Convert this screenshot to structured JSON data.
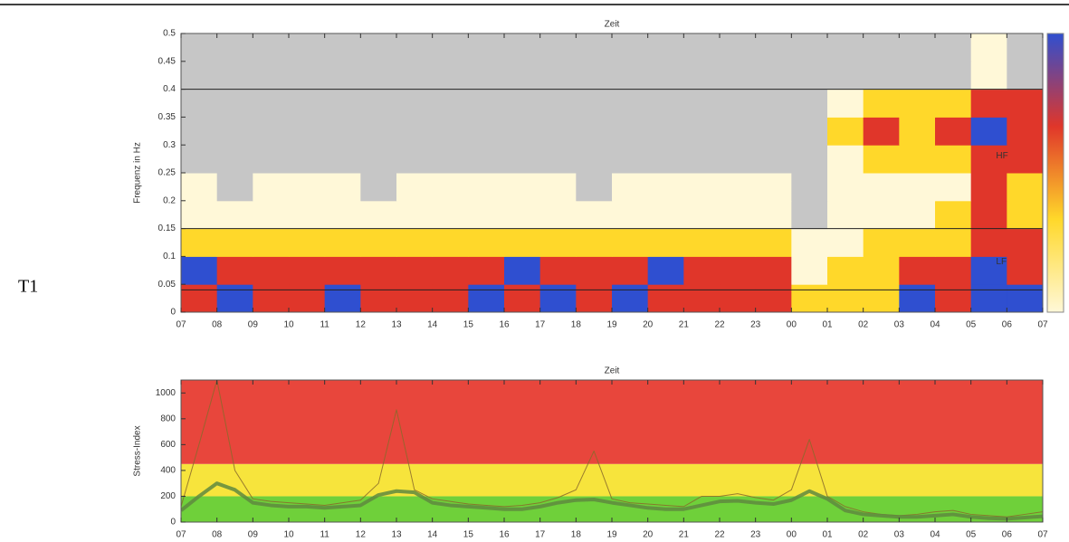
{
  "label": "T1",
  "chart_data": [
    {
      "type": "heatmap",
      "xlabel": "Zeit",
      "ylabel": "Frequenz in Hz",
      "xlim": [
        0,
        24
      ],
      "ylim": [
        0,
        0.5
      ],
      "xticks": [
        {
          "value": 0,
          "label": "07"
        },
        {
          "value": 1,
          "label": "08"
        },
        {
          "value": 2,
          "label": "09"
        },
        {
          "value": 3,
          "label": "10"
        },
        {
          "value": 4,
          "label": "11"
        },
        {
          "value": 5,
          "label": "12"
        },
        {
          "value": 6,
          "label": "13"
        },
        {
          "value": 7,
          "label": "14"
        },
        {
          "value": 8,
          "label": "15"
        },
        {
          "value": 9,
          "label": "16"
        },
        {
          "value": 10,
          "label": "17"
        },
        {
          "value": 11,
          "label": "18"
        },
        {
          "value": 12,
          "label": "19"
        },
        {
          "value": 13,
          "label": "20"
        },
        {
          "value": 14,
          "label": "21"
        },
        {
          "value": 15,
          "label": "22"
        },
        {
          "value": 16,
          "label": "23"
        },
        {
          "value": 17,
          "label": "00"
        },
        {
          "value": 18,
          "label": "01"
        },
        {
          "value": 19,
          "label": "02"
        },
        {
          "value": 20,
          "label": "03"
        },
        {
          "value": 21,
          "label": "04"
        },
        {
          "value": 22,
          "label": "05"
        },
        {
          "value": 23,
          "label": "06"
        },
        {
          "value": 24,
          "label": "07"
        }
      ],
      "yticks": [
        0,
        0.05,
        0.1,
        0.15,
        0.2,
        0.25,
        0.3,
        0.35,
        0.4,
        0.45,
        0.5
      ],
      "xbins": [
        0,
        1,
        2,
        3,
        4,
        5,
        6,
        7,
        8,
        9,
        10,
        11,
        12,
        13,
        14,
        15,
        16,
        17,
        18,
        19,
        20,
        21,
        22,
        23,
        24
      ],
      "ybins": [
        0,
        0.05,
        0.1,
        0.15,
        0.2,
        0.25,
        0.3,
        0.35,
        0.4,
        0.45,
        0.5
      ],
      "z": [
        [
          3,
          4,
          3,
          3,
          4,
          3,
          3,
          3,
          4,
          3,
          4,
          3,
          4,
          3,
          3,
          3,
          3,
          2,
          2,
          2,
          4,
          3,
          4,
          4
        ],
        [
          4,
          3,
          3,
          3,
          3,
          3,
          3,
          3,
          3,
          4,
          3,
          3,
          3,
          4,
          3,
          3,
          3,
          1,
          2,
          2,
          3,
          3,
          4,
          3
        ],
        [
          2,
          2,
          2,
          2,
          2,
          2,
          2,
          2,
          2,
          2,
          2,
          2,
          2,
          2,
          2,
          2,
          2,
          1,
          1,
          2,
          2,
          2,
          3,
          3
        ],
        [
          1,
          1,
          1,
          1,
          1,
          1,
          1,
          1,
          1,
          1,
          1,
          1,
          1,
          1,
          1,
          1,
          1,
          0,
          1,
          1,
          1,
          2,
          3,
          2
        ],
        [
          1,
          0,
          1,
          1,
          1,
          0,
          1,
          1,
          1,
          1,
          1,
          0,
          1,
          1,
          1,
          1,
          1,
          0,
          1,
          1,
          1,
          1,
          3,
          2
        ],
        [
          0,
          0,
          0,
          0,
          0,
          0,
          0,
          0,
          0,
          0,
          0,
          0,
          0,
          0,
          0,
          0,
          0,
          0,
          1,
          2,
          2,
          2,
          3,
          3
        ],
        [
          0,
          0,
          0,
          0,
          0,
          0,
          0,
          0,
          0,
          0,
          0,
          0,
          0,
          0,
          0,
          0,
          0,
          0,
          2,
          3,
          2,
          3,
          4,
          3
        ],
        [
          0,
          0,
          0,
          0,
          0,
          0,
          0,
          0,
          0,
          0,
          0,
          0,
          0,
          0,
          0,
          0,
          0,
          0,
          1,
          2,
          2,
          2,
          3,
          3
        ],
        [
          0,
          0,
          0,
          0,
          0,
          0,
          0,
          0,
          0,
          0,
          0,
          0,
          0,
          0,
          0,
          0,
          0,
          0,
          0,
          0,
          0,
          0,
          1,
          0
        ],
        [
          0,
          0,
          0,
          0,
          0,
          0,
          0,
          0,
          0,
          0,
          0,
          0,
          0,
          0,
          0,
          0,
          0,
          0,
          0,
          0,
          0,
          0,
          1,
          0
        ]
      ],
      "colors": [
        "#c6c6c6",
        "#fff8d8",
        "#ffd82a",
        "#e0362a",
        "#2f4fd0"
      ],
      "hlines": [
        0.04,
        0.15,
        0.4
      ],
      "annotations": [
        {
          "text": "HF",
          "x": 22.7,
          "y": 0.28
        },
        {
          "text": "LF",
          "x": 22.7,
          "y": 0.09
        }
      ]
    },
    {
      "type": "line",
      "xlabel": "Zeit",
      "ylabel": "Stress-Index",
      "xlim": [
        0,
        24
      ],
      "ylim": [
        0,
        1100
      ],
      "xticks": [
        {
          "value": 0,
          "label": "07"
        },
        {
          "value": 1,
          "label": "08"
        },
        {
          "value": 2,
          "label": "09"
        },
        {
          "value": 3,
          "label": "10"
        },
        {
          "value": 4,
          "label": "11"
        },
        {
          "value": 5,
          "label": "12"
        },
        {
          "value": 6,
          "label": "13"
        },
        {
          "value": 7,
          "label": "14"
        },
        {
          "value": 8,
          "label": "15"
        },
        {
          "value": 9,
          "label": "16"
        },
        {
          "value": 10,
          "label": "17"
        },
        {
          "value": 11,
          "label": "18"
        },
        {
          "value": 12,
          "label": "19"
        },
        {
          "value": 13,
          "label": "20"
        },
        {
          "value": 14,
          "label": "21"
        },
        {
          "value": 15,
          "label": "22"
        },
        {
          "value": 16,
          "label": "23"
        },
        {
          "value": 17,
          "label": "00"
        },
        {
          "value": 18,
          "label": "01"
        },
        {
          "value": 19,
          "label": "02"
        },
        {
          "value": 20,
          "label": "03"
        },
        {
          "value": 21,
          "label": "04"
        },
        {
          "value": 22,
          "label": "05"
        },
        {
          "value": 23,
          "label": "06"
        },
        {
          "value": 24,
          "label": "07"
        }
      ],
      "yticks": [
        0,
        200,
        400,
        600,
        800,
        1000
      ],
      "zones": [
        {
          "from": 0,
          "to": 200,
          "color": "#6fd03a"
        },
        {
          "from": 200,
          "to": 450,
          "color": "#f7e43c"
        },
        {
          "from": 450,
          "to": 1100,
          "color": "#e8463c"
        }
      ],
      "x": [
        0,
        0.5,
        1,
        1.5,
        2,
        2.5,
        3,
        3.5,
        4,
        4.5,
        5,
        5.5,
        6,
        6.5,
        7,
        7.5,
        8,
        8.5,
        9,
        9.5,
        10,
        10.5,
        11,
        11.5,
        12,
        12.5,
        13,
        13.5,
        14,
        14.5,
        15,
        15.5,
        16,
        16.5,
        17,
        17.5,
        18,
        18.5,
        19,
        19.5,
        20,
        20.5,
        21,
        21.5,
        22,
        22.5,
        23,
        23.5,
        24
      ],
      "series": [
        {
          "color": "#8a6a2a",
          "width": 1,
          "values": [
            120,
            600,
            1100,
            400,
            180,
            160,
            150,
            140,
            130,
            150,
            170,
            300,
            870,
            250,
            180,
            160,
            140,
            130,
            120,
            130,
            150,
            190,
            250,
            550,
            180,
            150,
            140,
            130,
            120,
            200,
            200,
            220,
            190,
            170,
            250,
            640,
            200,
            120,
            80,
            60,
            50,
            60,
            80,
            90,
            60,
            50,
            40,
            60,
            80
          ]
        },
        {
          "color": "#5f8a40",
          "width": 4,
          "values": [
            90,
            200,
            300,
            250,
            150,
            130,
            120,
            120,
            110,
            120,
            130,
            210,
            240,
            230,
            150,
            130,
            120,
            110,
            100,
            100,
            120,
            150,
            170,
            175,
            150,
            130,
            110,
            100,
            100,
            130,
            160,
            165,
            150,
            140,
            170,
            240,
            180,
            90,
            60,
            50,
            40,
            40,
            50,
            60,
            40,
            30,
            25,
            35,
            45
          ]
        }
      ]
    }
  ]
}
